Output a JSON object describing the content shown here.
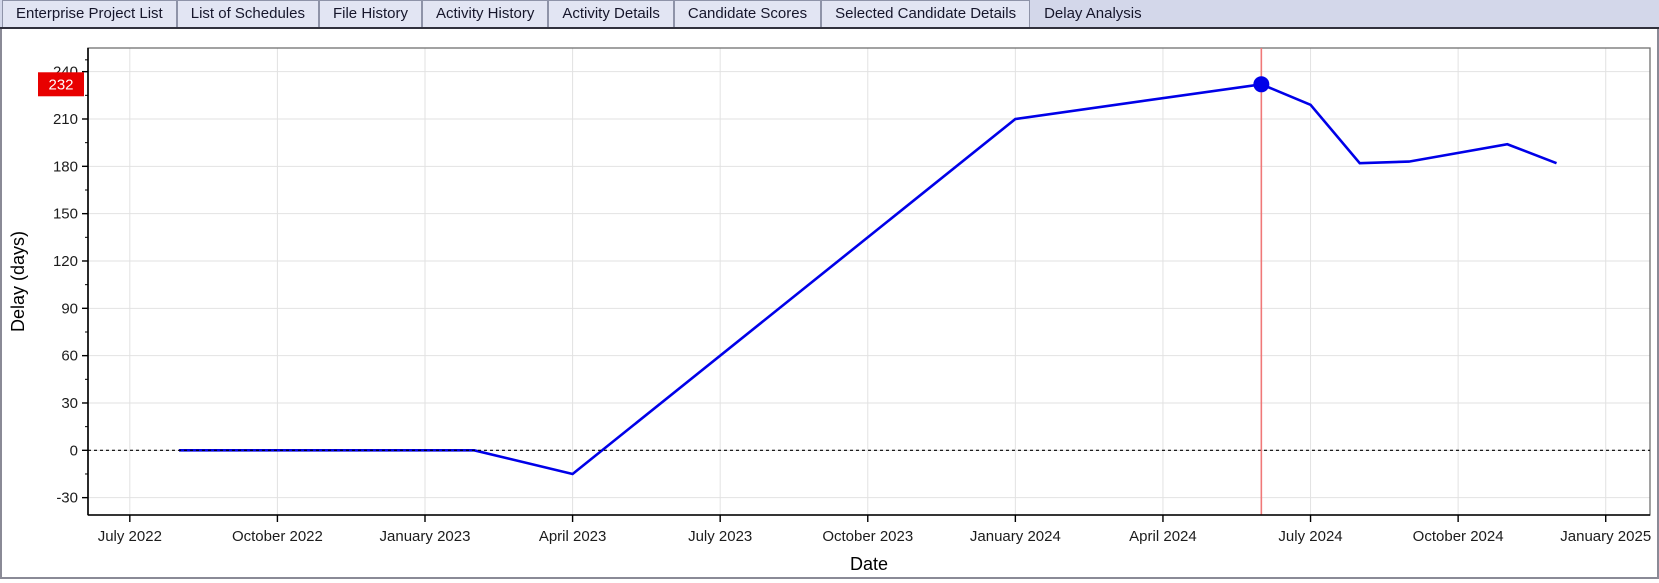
{
  "tabs": {
    "items": [
      "Enterprise Project List",
      "List of Schedules",
      "File History",
      "Activity History",
      "Activity Details",
      "Candidate Scores",
      "Selected Candidate Details",
      "Delay Analysis"
    ],
    "active": "Delay Analysis"
  },
  "chart_data": {
    "type": "line",
    "title": "",
    "xlabel": "Date",
    "ylabel": "Delay (days)",
    "x_ticks": [
      {
        "label": "July 2022",
        "m": 0
      },
      {
        "label": "October 2022",
        "m": 3
      },
      {
        "label": "January 2023",
        "m": 6
      },
      {
        "label": "April 2023",
        "m": 9
      },
      {
        "label": "July 2023",
        "m": 12
      },
      {
        "label": "October 2023",
        "m": 15
      },
      {
        "label": "January 2024",
        "m": 18
      },
      {
        "label": "April 2024",
        "m": 21
      },
      {
        "label": "July 2024",
        "m": 24
      },
      {
        "label": "October 2024",
        "m": 27
      },
      {
        "label": "January 2025",
        "m": 30
      }
    ],
    "y_ticks": [
      240,
      210,
      180,
      150,
      120,
      90,
      60,
      30,
      0,
      -30
    ],
    "xlim_months": [
      -0.85,
      30.9
    ],
    "ylim": [
      -41,
      255
    ],
    "grid": true,
    "zero_line": true,
    "points": [
      {
        "date": "2022-08",
        "m": 1,
        "delay": 0
      },
      {
        "date": "2023-02",
        "m": 7,
        "delay": 0
      },
      {
        "date": "2023-04",
        "m": 9,
        "delay": -15
      },
      {
        "date": "2024-01",
        "m": 18,
        "delay": 210
      },
      {
        "date": "2024-06",
        "m": 23,
        "delay": 232
      },
      {
        "date": "2024-07",
        "m": 24,
        "delay": 219
      },
      {
        "date": "2024-08",
        "m": 25,
        "delay": 182
      },
      {
        "date": "2024-09",
        "m": 26,
        "delay": 183
      },
      {
        "date": "2024-11",
        "m": 28,
        "delay": 194
      },
      {
        "date": "2024-12",
        "m": 29,
        "delay": 182
      }
    ],
    "highlight": {
      "m": 23,
      "delay": 232,
      "badge_label": "232"
    },
    "colors": {
      "line": "#0000e8",
      "marker": "#0000e8",
      "vline": "#f07878",
      "badge_bg": "#e80000",
      "badge_text": "#ffffff",
      "grid": "#e2e2e2",
      "axis": "#000000",
      "frame": "#707070",
      "tick_text": "#1c1c1c"
    }
  }
}
